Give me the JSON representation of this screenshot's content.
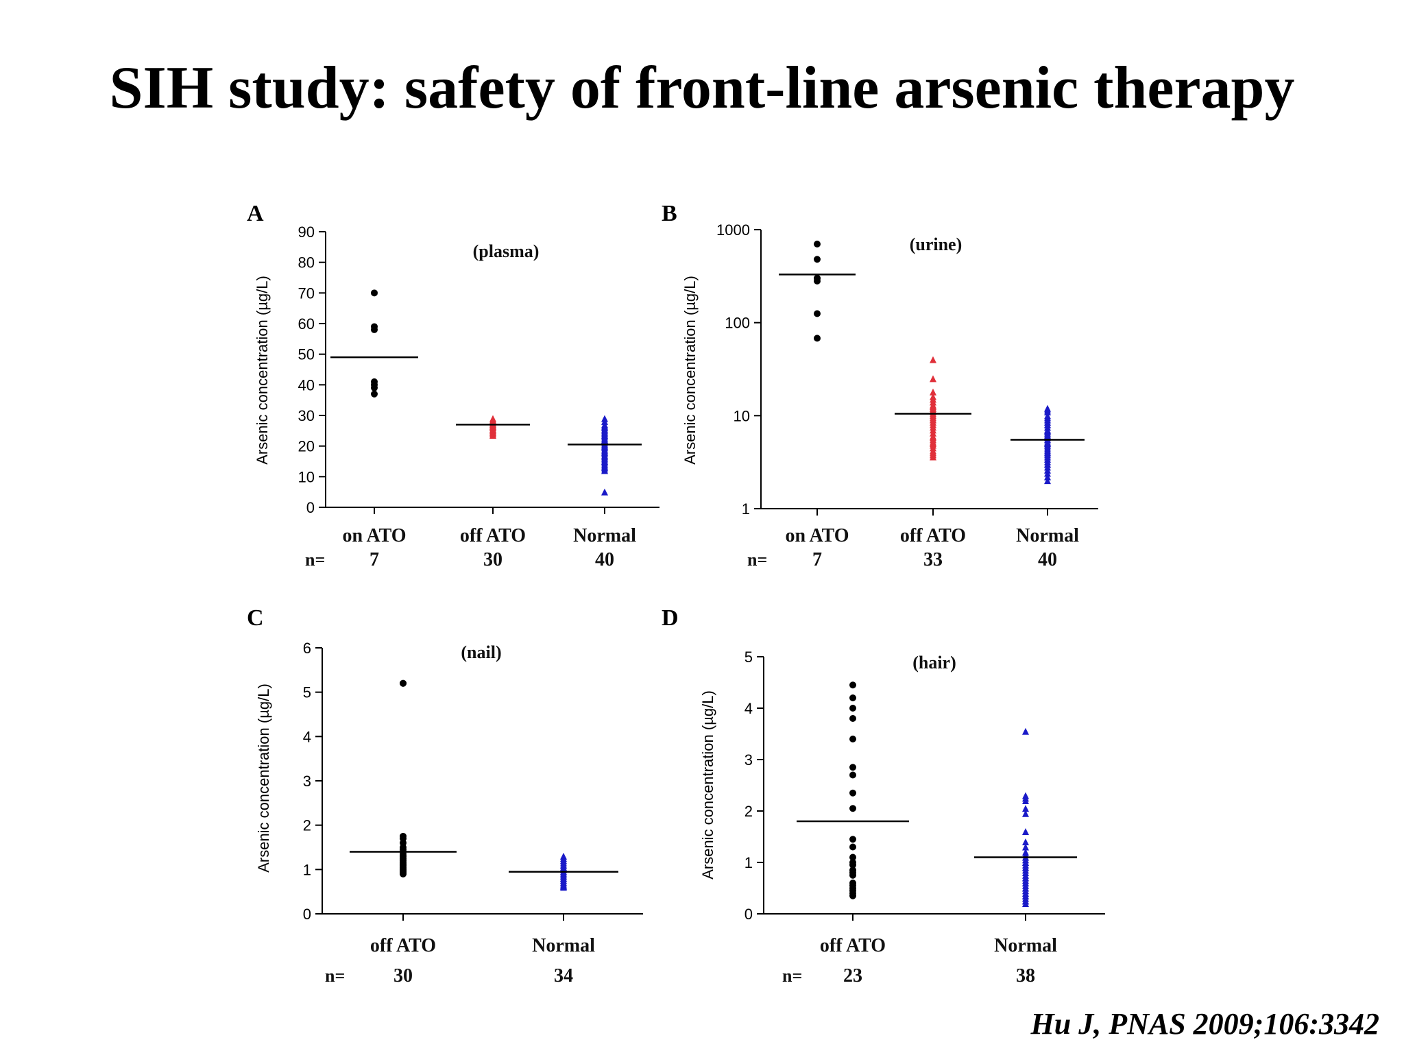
{
  "slide": {
    "title": "SIH study: safety of front-line arsenic therapy",
    "citation": "Hu J, PNAS 2009;106:3342"
  },
  "chart_data": [
    {
      "panel": "A",
      "type": "scatter",
      "subtitle": "(plasma)",
      "ylabel": "Arsenic concentration (µg/L)",
      "ylim": [
        0,
        90
      ],
      "yscale": "linear",
      "yticks": [
        "0",
        "10",
        "20",
        "30",
        "40",
        "50",
        "60",
        "70",
        "80",
        "90"
      ],
      "categories": [
        "on ATO",
        "off ATO",
        "Normal"
      ],
      "n_label": "n=",
      "n": [
        "7",
        "30",
        "40"
      ],
      "colors": [
        "#000000",
        "#e0303a",
        "#1a1ac8"
      ],
      "markers": [
        "circle",
        "triangle",
        "triangle"
      ],
      "means": [
        49,
        27,
        20.5
      ],
      "series": [
        {
          "values": [
            70,
            59,
            58,
            41,
            40,
            39,
            37
          ]
        },
        {
          "values": [
            29,
            28.5,
            28,
            28,
            27.5,
            27.5,
            27,
            27,
            27,
            26.5,
            26.5,
            26.5,
            26,
            26,
            26,
            25.5,
            25.5,
            25,
            25,
            25,
            24.5,
            24.5,
            24,
            24,
            24,
            23.5,
            28,
            27,
            26,
            25
          ]
        },
        {
          "values": [
            29,
            28,
            27,
            26.5,
            26,
            25.5,
            25,
            24.5,
            24,
            23.5,
            23,
            22.5,
            22,
            21.5,
            21,
            20.5,
            20,
            19.5,
            19,
            18.5,
            18,
            17.5,
            17,
            16.5,
            16,
            15.5,
            15,
            14.5,
            14,
            13.5,
            13,
            12.5,
            12,
            22,
            20,
            18,
            16,
            24,
            26,
            5
          ]
        }
      ]
    },
    {
      "panel": "B",
      "type": "scatter",
      "subtitle": "(urine)",
      "ylabel": "Arsenic concentration (µg/L)",
      "ylim": [
        1,
        1000
      ],
      "yscale": "log",
      "yticks": [
        "1",
        "10",
        "100",
        "1000"
      ],
      "categories": [
        "on ATO",
        "off ATO",
        "Normal"
      ],
      "n_label": "n=",
      "n": [
        "7",
        "33",
        "40"
      ],
      "colors": [
        "#000000",
        "#e0303a",
        "#1a1ac8"
      ],
      "markers": [
        "circle",
        "triangle",
        "triangle"
      ],
      "means": [
        330,
        10.5,
        5.5
      ],
      "series": [
        {
          "values": [
            700,
            480,
            300,
            280,
            125,
            68,
            300
          ]
        },
        {
          "values": [
            40,
            25,
            18,
            16,
            15,
            14,
            13,
            12.5,
            12,
            11.5,
            11,
            10.5,
            10,
            9.5,
            9,
            8.5,
            8,
            7.5,
            7,
            6.5,
            6,
            5.8,
            5.5,
            5.2,
            5,
            4.8,
            4.5,
            4.2,
            4,
            3.8,
            3.6,
            12,
            9
          ]
        },
        {
          "values": [
            12,
            11.5,
            11,
            10,
            9.5,
            9,
            8.5,
            8,
            7.5,
            7,
            6.8,
            6.5,
            6.2,
            6,
            5.8,
            5.5,
            5.2,
            5,
            4.8,
            4.6,
            4.4,
            4.2,
            4,
            3.8,
            3.6,
            3.4,
            3.2,
            3,
            2.8,
            2.6,
            2.4,
            2.2,
            2,
            6,
            5,
            4,
            7,
            8,
            3,
            5.5
          ]
        }
      ]
    },
    {
      "panel": "C",
      "type": "scatter",
      "subtitle": "(nail)",
      "ylabel": "Arsenic concentration (µg/L)",
      "ylim": [
        0,
        6
      ],
      "yscale": "linear",
      "yticks": [
        "0",
        "1",
        "2",
        "3",
        "4",
        "5",
        "6"
      ],
      "categories": [
        "off ATO",
        "Normal"
      ],
      "n_label": "n=",
      "n": [
        "30",
        "34"
      ],
      "colors": [
        "#000000",
        "#1a1ac8"
      ],
      "markers": [
        "circle",
        "triangle"
      ],
      "means": [
        1.4,
        0.95
      ],
      "series": [
        {
          "values": [
            5.2,
            5.2,
            1.75,
            1.7,
            1.6,
            1.5,
            1.45,
            1.4,
            1.35,
            1.3,
            1.3,
            1.25,
            1.2,
            1.2,
            1.15,
            1.1,
            1.1,
            1.05,
            1.05,
            1.0,
            1.0,
            0.95,
            0.95,
            0.9,
            0.9,
            1.15,
            1.25,
            1.0,
            1.1,
            0.95
          ]
        },
        {
          "values": [
            1.3,
            1.25,
            1.2,
            1.15,
            1.1,
            1.05,
            1.0,
            1.0,
            0.95,
            0.95,
            0.9,
            0.9,
            0.85,
            0.85,
            0.8,
            0.8,
            0.75,
            0.75,
            0.7,
            0.7,
            0.65,
            0.65,
            0.62,
            0.6,
            1.1,
            1.0,
            0.9,
            0.8,
            0.7,
            1.2,
            0.95,
            0.85,
            0.75,
            0.65
          ]
        }
      ]
    },
    {
      "panel": "D",
      "type": "scatter",
      "subtitle": "(hair)",
      "ylabel": "Arsenic concentration (µg/L)",
      "ylim": [
        0,
        5
      ],
      "yscale": "linear",
      "yticks": [
        "0",
        "1",
        "2",
        "3",
        "4",
        "5"
      ],
      "categories": [
        "off ATO",
        "Normal"
      ],
      "n_label": "n=",
      "n": [
        "23",
        "38"
      ],
      "colors": [
        "#000000",
        "#1a1ac8"
      ],
      "markers": [
        "circle",
        "triangle"
      ],
      "means": [
        1.8,
        1.1
      ],
      "series": [
        {
          "values": [
            4.45,
            4.2,
            4.0,
            3.8,
            3.4,
            2.85,
            2.7,
            2.35,
            2.05,
            1.45,
            1.3,
            1.1,
            0.95,
            0.85,
            0.75,
            0.6,
            0.5,
            0.45,
            0.4,
            0.35,
            1.0,
            0.8,
            0.55
          ]
        },
        {
          "values": [
            3.55,
            2.3,
            2.25,
            2.2,
            2.05,
            1.95,
            1.6,
            1.4,
            1.2,
            1.15,
            1.1,
            1.05,
            1.0,
            1.0,
            0.95,
            0.9,
            0.85,
            0.8,
            0.75,
            0.7,
            0.65,
            0.6,
            0.55,
            0.5,
            0.45,
            0.4,
            0.35,
            0.3,
            0.25,
            0.2,
            1.1,
            0.9,
            0.7,
            0.5,
            0.35,
            0.25,
            1.3,
            0.6
          ]
        }
      ]
    }
  ]
}
